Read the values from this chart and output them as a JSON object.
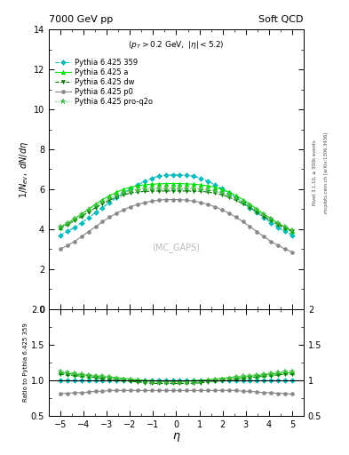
{
  "title_left": "7000 GeV pp",
  "title_right": "Soft QCD",
  "subtitle": "(p_{T} > 0.2 GeV, |\\eta| < 5.2)",
  "watermark": "(MC_GAPS)",
  "xlabel": "\\eta",
  "ylabel_main": "1/N_{ev}, dN/d\\eta",
  "ylabel_ratio": "Ratio to Pythia 6.425 359",
  "ylim_main": [
    0,
    14
  ],
  "ylim_ratio": [
    0.5,
    2.0
  ],
  "yticks_main": [
    0,
    2,
    4,
    6,
    8,
    10,
    12,
    14
  ],
  "yticks_ratio": [
    0.5,
    1.0,
    1.5,
    2.0
  ],
  "xlim": [
    -5.5,
    5.5
  ],
  "xticks": [
    -5,
    -4,
    -3,
    -2,
    -1,
    0,
    1,
    2,
    3,
    4,
    5
  ],
  "right_label": "Rivet 3.1.10, ≥ 300k events",
  "right_label2": "mcplots.cern.ch [arXiv:1306.3436]",
  "series": [
    {
      "label": "Pythia 6.425 359",
      "color": "#00BBBB",
      "linestyle": "dashed",
      "marker": "D",
      "markersize": 3,
      "linewidth": 0.8,
      "main_values": [
        3.7,
        3.88,
        4.08,
        4.32,
        4.57,
        4.82,
        5.08,
        5.33,
        5.58,
        5.82,
        6.02,
        6.22,
        6.4,
        6.55,
        6.65,
        6.7,
        6.72,
        6.72,
        6.7,
        6.65,
        6.55,
        6.4,
        6.22,
        6.02,
        5.82,
        5.58,
        5.33,
        5.08,
        4.82,
        4.57,
        4.32,
        4.08,
        3.88,
        3.7
      ],
      "ratio_values": [
        1.0,
        1.0,
        1.0,
        1.0,
        1.0,
        1.0,
        1.0,
        1.0,
        1.0,
        1.0,
        1.0,
        1.0,
        1.0,
        1.0,
        1.0,
        1.0,
        1.0,
        1.0,
        1.0,
        1.0,
        1.0,
        1.0,
        1.0,
        1.0,
        1.0,
        1.0,
        1.0,
        1.0,
        1.0,
        1.0,
        1.0,
        1.0,
        1.0,
        1.0
      ]
    },
    {
      "label": "Pythia 6.425 a",
      "color": "#00DD00",
      "linestyle": "solid",
      "marker": "^",
      "markersize": 3.5,
      "linewidth": 0.8,
      "main_values": [
        4.1,
        4.3,
        4.52,
        4.75,
        5.0,
        5.25,
        5.48,
        5.68,
        5.85,
        6.0,
        6.1,
        6.17,
        6.22,
        6.25,
        6.27,
        6.28,
        6.28,
        6.28,
        6.27,
        6.25,
        6.22,
        6.17,
        6.1,
        6.0,
        5.85,
        5.68,
        5.48,
        5.25,
        5.0,
        4.75,
        4.52,
        4.3,
        4.1,
        3.92
      ],
      "ratio_values": [
        1.11,
        1.1,
        1.09,
        1.08,
        1.07,
        1.06,
        1.05,
        1.05,
        1.04,
        1.03,
        1.02,
        1.01,
        1.0,
        1.0,
        0.99,
        0.99,
        0.99,
        0.99,
        0.99,
        1.0,
        1.0,
        1.01,
        1.02,
        1.03,
        1.04,
        1.05,
        1.05,
        1.06,
        1.07,
        1.08,
        1.09,
        1.1,
        1.11,
        1.11
      ]
    },
    {
      "label": "Pythia 6.425 dw",
      "color": "#007700",
      "linestyle": "dashed",
      "marker": "v",
      "markersize": 3,
      "linewidth": 0.8,
      "main_values": [
        4.05,
        4.22,
        4.42,
        4.63,
        4.85,
        5.07,
        5.27,
        5.45,
        5.6,
        5.72,
        5.8,
        5.86,
        5.89,
        5.9,
        5.91,
        5.91,
        5.91,
        5.91,
        5.91,
        5.9,
        5.89,
        5.86,
        5.8,
        5.72,
        5.6,
        5.45,
        5.27,
        5.07,
        4.85,
        4.63,
        4.42,
        4.22,
        4.05,
        3.88
      ],
      "ratio_values": [
        1.09,
        1.08,
        1.07,
        1.06,
        1.05,
        1.04,
        1.03,
        1.02,
        1.01,
        1.0,
        0.99,
        0.98,
        0.97,
        0.96,
        0.96,
        0.96,
        0.96,
        0.96,
        0.96,
        0.96,
        0.97,
        0.98,
        0.99,
        1.0,
        1.01,
        1.02,
        1.03,
        1.04,
        1.05,
        1.06,
        1.07,
        1.08,
        1.09,
        1.09
      ]
    },
    {
      "label": "Pythia 6.425 p0",
      "color": "#888888",
      "linestyle": "solid",
      "marker": "o",
      "markersize": 3,
      "linewidth": 0.8,
      "main_values": [
        3.0,
        3.18,
        3.38,
        3.62,
        3.87,
        4.12,
        4.37,
        4.6,
        4.8,
        4.97,
        5.12,
        5.24,
        5.33,
        5.4,
        5.45,
        5.48,
        5.48,
        5.48,
        5.45,
        5.4,
        5.33,
        5.24,
        5.12,
        4.97,
        4.8,
        4.6,
        4.37,
        4.12,
        3.87,
        3.62,
        3.38,
        3.18,
        3.0,
        2.85
      ],
      "ratio_values": [
        0.82,
        0.82,
        0.83,
        0.83,
        0.84,
        0.85,
        0.85,
        0.86,
        0.86,
        0.86,
        0.86,
        0.86,
        0.86,
        0.86,
        0.86,
        0.86,
        0.86,
        0.86,
        0.86,
        0.86,
        0.86,
        0.86,
        0.86,
        0.86,
        0.86,
        0.86,
        0.85,
        0.85,
        0.84,
        0.83,
        0.83,
        0.82,
        0.82,
        0.81
      ]
    },
    {
      "label": "Pythia 6.425 pro-q2o",
      "color": "#44BB44",
      "linestyle": "dotted",
      "marker": "*",
      "markersize": 4.5,
      "linewidth": 0.8,
      "main_values": [
        4.12,
        4.3,
        4.52,
        4.73,
        4.96,
        5.18,
        5.38,
        5.56,
        5.7,
        5.82,
        5.91,
        5.97,
        6.0,
        6.02,
        6.02,
        6.02,
        6.02,
        6.02,
        6.02,
        6.02,
        6.0,
        5.97,
        5.91,
        5.82,
        5.7,
        5.56,
        5.38,
        5.18,
        4.96,
        4.73,
        4.52,
        4.3,
        4.12,
        3.95
      ],
      "ratio_values": [
        1.13,
        1.11,
        1.1,
        1.09,
        1.08,
        1.07,
        1.06,
        1.05,
        1.03,
        1.02,
        1.01,
        1.0,
        0.99,
        0.98,
        0.98,
        0.98,
        0.98,
        0.98,
        0.98,
        0.98,
        0.99,
        1.0,
        1.01,
        1.02,
        1.03,
        1.05,
        1.06,
        1.07,
        1.08,
        1.09,
        1.1,
        1.11,
        1.13,
        1.13
      ]
    }
  ],
  "background_color": "#ffffff"
}
